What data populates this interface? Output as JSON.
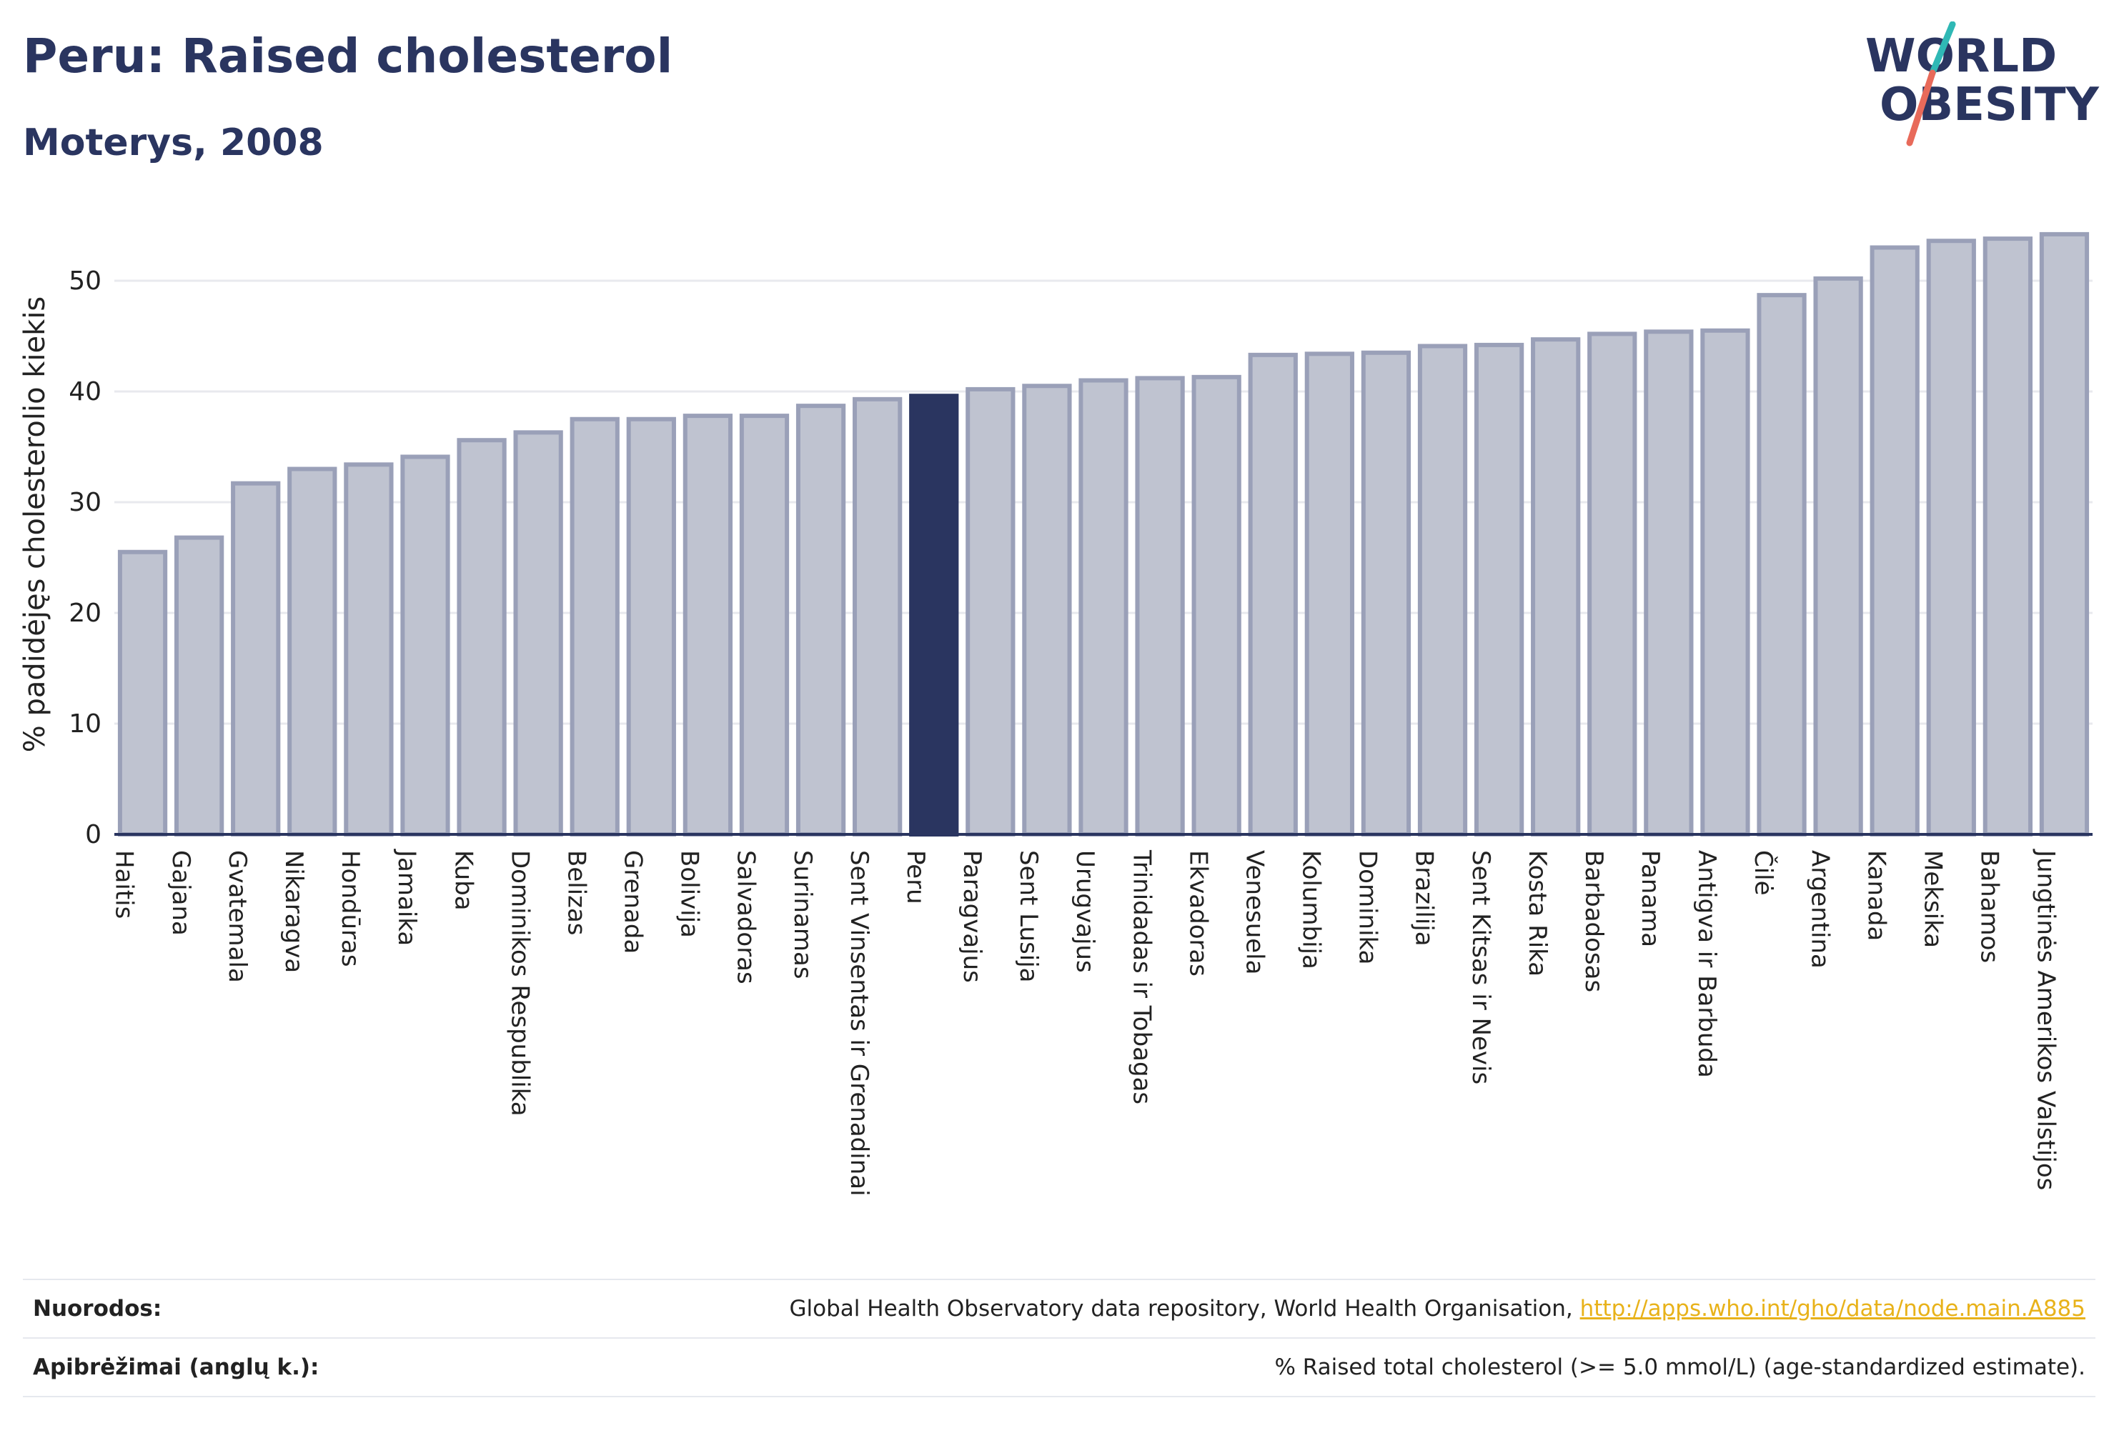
{
  "header": {
    "title": "Peru: Raised cholesterol",
    "subtitle": "Moterys, 2008"
  },
  "logo": {
    "line1": "WORLD",
    "line2": "OBESITY",
    "colors": {
      "text": "#2a3560",
      "slash_top": "#2fb8b5",
      "slash_bottom": "#e86a5a"
    }
  },
  "colors": {
    "bar_fill": "#bfc3d0",
    "bar_stroke": "#9aa0b8",
    "highlight_fill": "#2a3560",
    "grid": "#e8e9ee",
    "axis": "#2a3560"
  },
  "chart_data": {
    "type": "bar",
    "title": "Peru: Raised cholesterol",
    "subtitle": "Moterys, 2008",
    "ylabel": "% padidėjęs cholesterolio kiekis",
    "xlabel": "",
    "ylim": [
      0,
      56
    ],
    "yticks": [
      0,
      10,
      20,
      30,
      40,
      50
    ],
    "grid": true,
    "highlight": "Peru",
    "categories": [
      "Haitis",
      "Gajana",
      "Gvatemala",
      "Nikaragva",
      "Hondūras",
      "Jamaika",
      "Kuba",
      "Dominikos Respublika",
      "Belizas",
      "Grenada",
      "Bolivija",
      "Salvadoras",
      "Surinamas",
      "Sent Vinsentas ir Grenadinai",
      "Peru",
      "Paragvajus",
      "Sent Lusija",
      "Urugvajus",
      "Trinidadas ir Tobagas",
      "Ekvadoras",
      "Venesuela",
      "Kolumbija",
      "Dominika",
      "Brazilija",
      "Sent Kitsas ir Nevis",
      "Kosta Rika",
      "Barbadosas",
      "Panama",
      "Antigva ir Barbuda",
      "Čilė",
      "Argentina",
      "Kanada",
      "Meksika",
      "Bahamos",
      "Jungtinės Amerikos Valstijos"
    ],
    "values": [
      25.5,
      26.8,
      31.7,
      33.0,
      33.4,
      34.1,
      35.6,
      36.3,
      37.5,
      37.5,
      37.8,
      37.8,
      38.7,
      39.3,
      39.6,
      40.2,
      40.5,
      41.0,
      41.2,
      41.3,
      43.3,
      43.4,
      43.5,
      44.1,
      44.2,
      44.7,
      45.2,
      45.4,
      45.5,
      48.7,
      50.2,
      53.0,
      53.6,
      53.8,
      54.2
    ]
  },
  "footer": {
    "sources_label": "Nuorodos:",
    "sources_text": "Global Health Observatory data repository, World Health Organisation, ",
    "sources_link": "http://apps.who.int/gho/data/node.main.A885",
    "definitions_label": "Apibrėžimai (anglų k.):",
    "definitions_text": "% Raised total cholesterol (>= 5.0 mmol/L) (age-standardized estimate)."
  }
}
